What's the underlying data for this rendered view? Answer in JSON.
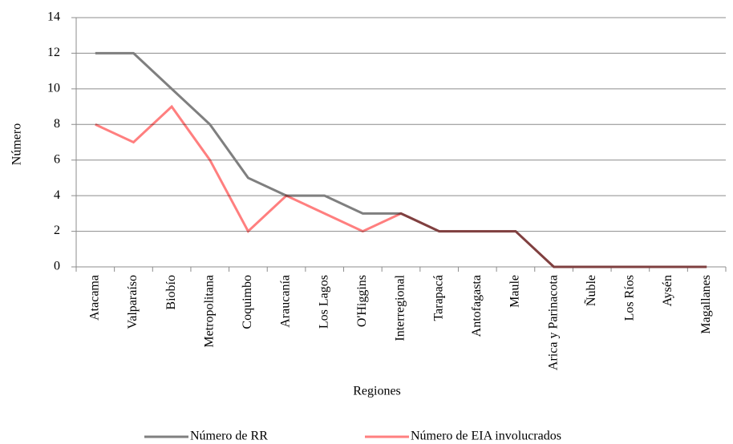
{
  "chart_data": {
    "type": "line",
    "x_label": "Regiones",
    "y_label": "Número",
    "categories": [
      "Atacama",
      "Valparaíso",
      "Biobío",
      "Metropolitana",
      "Coquimbo",
      "Araucanía",
      "Los Lagos",
      "O'Higgins",
      "Interregional",
      "Tarapacá",
      "Antofagasta",
      "Maule",
      "Arica y Parinacota",
      "Ñuble",
      "Los Ríos",
      "Aysén",
      "Magallanes"
    ],
    "series": [
      {
        "name": "Número de RR",
        "color": "#7f7f7f",
        "values": [
          12,
          12,
          10,
          8,
          5,
          4,
          4,
          3,
          3,
          2,
          2,
          2,
          0,
          0,
          0,
          0,
          0
        ]
      },
      {
        "name": "Número de EIA involucrados",
        "color": "#ff7f7f",
        "values": [
          8,
          7,
          9,
          6,
          2,
          4,
          3,
          2,
          3,
          2,
          2,
          2,
          0,
          0,
          0,
          0,
          0
        ]
      }
    ],
    "ylim": [
      0,
      14
    ],
    "yticks": [
      0,
      2,
      4,
      6,
      8,
      10,
      12,
      14
    ],
    "grid": true,
    "legend": "bottom"
  }
}
